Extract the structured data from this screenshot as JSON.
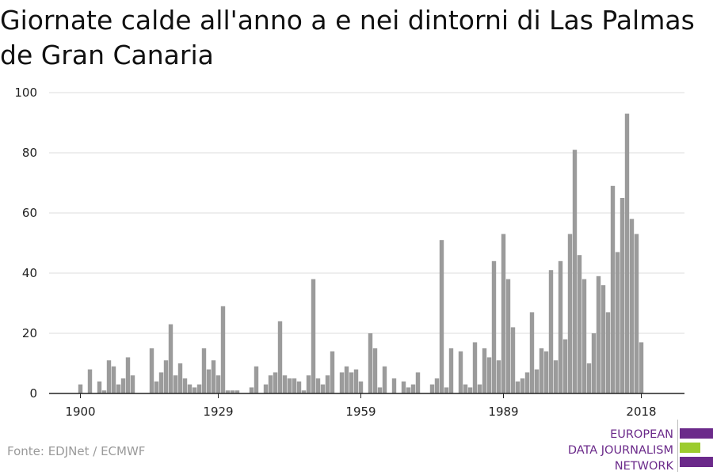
{
  "title": "Giornate calde all'anno a e nei dintorni di Las Palmas de Gran Canaria",
  "source": "Fonte: EDJNet / ECMWF",
  "logo": {
    "lines": [
      "EUROPEAN",
      "DATA JOURNALISM",
      "NETWORK"
    ],
    "bar_colors": [
      "#6b2a8a",
      "#9ccc2e",
      "#6b2a8a"
    ]
  },
  "colors": {
    "bar": "#9b9b9b",
    "grid": "#dddddd",
    "axis": "#222222"
  },
  "chart_data": {
    "type": "bar",
    "x_start": 1900,
    "x_end": 2018,
    "xticks": [
      "1900",
      "1929",
      "1959",
      "1989",
      "2018"
    ],
    "yticks": [
      "0",
      "20",
      "40",
      "60",
      "80",
      "100"
    ],
    "ylim": [
      0,
      100
    ],
    "grid": true,
    "values": [
      3,
      0,
      8,
      0,
      4,
      1,
      11,
      9,
      3,
      5,
      12,
      6,
      0,
      0,
      0,
      15,
      4,
      7,
      11,
      23,
      6,
      10,
      5,
      3,
      2,
      3,
      15,
      8,
      11,
      6,
      29,
      1,
      1,
      1,
      0,
      0,
      2,
      9,
      0,
      3,
      6,
      7,
      24,
      6,
      5,
      5,
      4,
      1,
      6,
      38,
      5,
      3,
      6,
      14,
      0,
      7,
      9,
      7,
      8,
      4,
      0,
      20,
      15,
      2,
      9,
      0,
      5,
      0,
      4,
      2,
      3,
      7,
      0,
      0,
      3,
      5,
      51,
      2,
      15,
      0,
      14,
      3,
      2,
      17,
      3,
      15,
      12,
      44,
      11,
      53,
      38,
      22,
      4,
      5,
      7,
      27,
      8,
      15,
      14,
      41,
      11,
      44,
      18,
      53,
      81,
      46,
      38,
      10,
      20,
      39,
      36,
      27,
      69,
      47,
      65,
      93,
      58,
      53,
      17
    ]
  }
}
